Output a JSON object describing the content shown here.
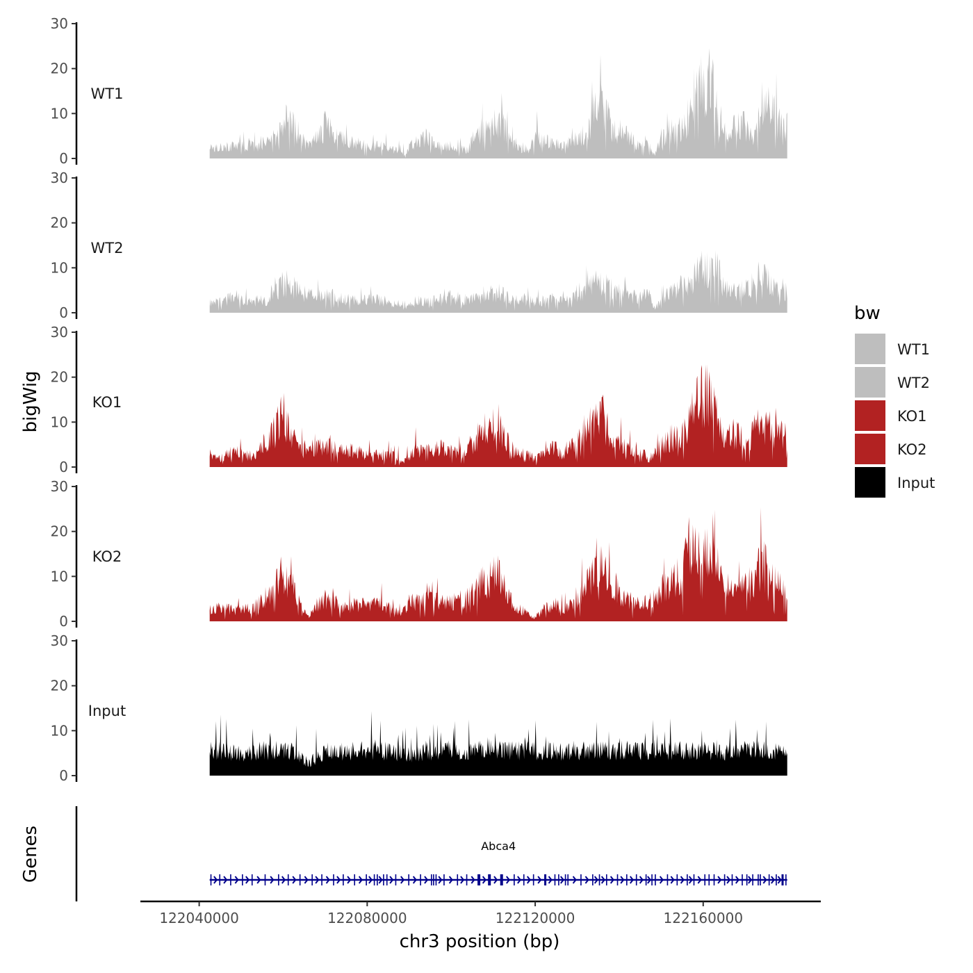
{
  "chart_data": {
    "type": "area",
    "title": "",
    "xlabel": "chr3 position (bp)",
    "ylabel": "bigWig",
    "genes_label": "Genes",
    "xlim": [
      122026000,
      122188000
    ],
    "data_range": [
      122042500,
      122180000
    ],
    "x_ticks": [
      122040000,
      122080000,
      122120000,
      122160000
    ],
    "x_tick_labels": [
      "122040000",
      "122080000",
      "122120000",
      "122160000"
    ],
    "ylim": [
      0,
      30
    ],
    "y_ticks": [
      0,
      10,
      20,
      30
    ],
    "y_tick_labels": [
      "0",
      "10",
      "20",
      "30"
    ],
    "legend": {
      "title": "bw",
      "position": "right",
      "entries": [
        {
          "label": "WT1",
          "color": "#bebebe"
        },
        {
          "label": "WT2",
          "color": "#bebebe"
        },
        {
          "label": "KO1",
          "color": "#b22222"
        },
        {
          "label": "KO2",
          "color": "#b22222"
        },
        {
          "label": "Input",
          "color": "#000000"
        }
      ]
    },
    "series": [
      {
        "name": "WT1",
        "color": "#bebebe",
        "profile": [
          [
            122042500,
            3
          ],
          [
            122046000,
            3
          ],
          [
            122050000,
            3
          ],
          [
            122054000,
            3
          ],
          [
            122057000,
            4
          ],
          [
            122059000,
            7
          ],
          [
            122061000,
            10
          ],
          [
            122063000,
            7
          ],
          [
            122066000,
            3
          ],
          [
            122068000,
            5
          ],
          [
            122070000,
            8
          ],
          [
            122073000,
            5
          ],
          [
            122076000,
            4
          ],
          [
            122080000,
            3
          ],
          [
            122084000,
            3
          ],
          [
            122087000,
            2
          ],
          [
            122089000,
            1
          ],
          [
            122091000,
            4
          ],
          [
            122094000,
            5
          ],
          [
            122097000,
            3
          ],
          [
            122101000,
            3
          ],
          [
            122104000,
            2
          ],
          [
            122106000,
            6
          ],
          [
            122109000,
            8
          ],
          [
            122112000,
            9
          ],
          [
            122114000,
            5
          ],
          [
            122116000,
            3
          ],
          [
            122118000,
            1
          ],
          [
            122120000,
            5
          ],
          [
            122123000,
            4
          ],
          [
            122126000,
            3
          ],
          [
            122129000,
            4
          ],
          [
            122132000,
            6
          ],
          [
            122134000,
            11
          ],
          [
            122136000,
            13
          ],
          [
            122138000,
            8
          ],
          [
            122141000,
            6
          ],
          [
            122144000,
            4
          ],
          [
            122147000,
            3
          ],
          [
            122148500,
            1
          ],
          [
            122150000,
            5
          ],
          [
            122153000,
            6
          ],
          [
            122156000,
            8
          ],
          [
            122158000,
            14
          ],
          [
            122160000,
            18
          ],
          [
            122162000,
            19
          ],
          [
            122164000,
            8
          ],
          [
            122166000,
            6
          ],
          [
            122169000,
            9
          ],
          [
            122172000,
            6
          ],
          [
            122174000,
            13
          ],
          [
            122176000,
            12
          ],
          [
            122178000,
            9
          ],
          [
            122180000,
            8
          ]
        ]
      },
      {
        "name": "WT2",
        "color": "#bebebe",
        "profile": [
          [
            122042500,
            2
          ],
          [
            122046000,
            3
          ],
          [
            122049000,
            4
          ],
          [
            122052000,
            3
          ],
          [
            122056000,
            3
          ],
          [
            122058000,
            6
          ],
          [
            122060000,
            7
          ],
          [
            122063000,
            6
          ],
          [
            122066000,
            4
          ],
          [
            122069000,
            5
          ],
          [
            122072000,
            4
          ],
          [
            122076000,
            3
          ],
          [
            122080000,
            3
          ],
          [
            122084000,
            3
          ],
          [
            122087000,
            2
          ],
          [
            122089000,
            1
          ],
          [
            122092000,
            3
          ],
          [
            122096000,
            3
          ],
          [
            122100000,
            4
          ],
          [
            122104000,
            3
          ],
          [
            122107000,
            4
          ],
          [
            122111000,
            5
          ],
          [
            122115000,
            3
          ],
          [
            122118000,
            3
          ],
          [
            122122000,
            3
          ],
          [
            122126000,
            3
          ],
          [
            122129000,
            4
          ],
          [
            122132000,
            6
          ],
          [
            122135000,
            8
          ],
          [
            122138000,
            6
          ],
          [
            122141000,
            5
          ],
          [
            122144000,
            4
          ],
          [
            122147000,
            4
          ],
          [
            122148500,
            1
          ],
          [
            122151000,
            4
          ],
          [
            122154000,
            6
          ],
          [
            122157000,
            7
          ],
          [
            122159000,
            10
          ],
          [
            122161000,
            11
          ],
          [
            122163000,
            12
          ],
          [
            122165000,
            6
          ],
          [
            122168000,
            5
          ],
          [
            122171000,
            6
          ],
          [
            122174000,
            9
          ],
          [
            122176000,
            8
          ],
          [
            122178000,
            5
          ],
          [
            122180000,
            5
          ]
        ]
      },
      {
        "name": "KO1",
        "color": "#b22222",
        "profile": [
          [
            122042500,
            3
          ],
          [
            122045000,
            2
          ],
          [
            122048000,
            4
          ],
          [
            122051000,
            3
          ],
          [
            122054000,
            3
          ],
          [
            122056000,
            7
          ],
          [
            122058000,
            9
          ],
          [
            122060000,
            13
          ],
          [
            122062000,
            7
          ],
          [
            122065000,
            4
          ],
          [
            122068000,
            5
          ],
          [
            122071000,
            5
          ],
          [
            122074000,
            4
          ],
          [
            122077000,
            4
          ],
          [
            122080000,
            3
          ],
          [
            122083000,
            3
          ],
          [
            122086000,
            3
          ],
          [
            122088500,
            1
          ],
          [
            122091000,
            4
          ],
          [
            122094000,
            4
          ],
          [
            122097000,
            5
          ],
          [
            122100000,
            4
          ],
          [
            122103000,
            3
          ],
          [
            122105000,
            6
          ],
          [
            122107000,
            8
          ],
          [
            122109000,
            10
          ],
          [
            122111000,
            12
          ],
          [
            122113000,
            7
          ],
          [
            122115000,
            4
          ],
          [
            122118000,
            3
          ],
          [
            122120000,
            2
          ],
          [
            122122000,
            3
          ],
          [
            122125000,
            5
          ],
          [
            122127000,
            2
          ],
          [
            122129000,
            6
          ],
          [
            122131000,
            8
          ],
          [
            122133000,
            10
          ],
          [
            122135000,
            14
          ],
          [
            122137000,
            10
          ],
          [
            122139000,
            6
          ],
          [
            122142000,
            5
          ],
          [
            122145000,
            4
          ],
          [
            122147000,
            2
          ],
          [
            122149000,
            4
          ],
          [
            122152000,
            7
          ],
          [
            122155000,
            8
          ],
          [
            122157000,
            12
          ],
          [
            122159000,
            16
          ],
          [
            122161000,
            20
          ],
          [
            122163000,
            15
          ],
          [
            122165000,
            7
          ],
          [
            122168000,
            8
          ],
          [
            122171000,
            6
          ],
          [
            122173000,
            11
          ],
          [
            122175000,
            10
          ],
          [
            122177000,
            9
          ],
          [
            122180000,
            7
          ]
        ]
      },
      {
        "name": "KO2",
        "color": "#b22222",
        "profile": [
          [
            122042500,
            3
          ],
          [
            122045000,
            3
          ],
          [
            122048000,
            3
          ],
          [
            122051000,
            3
          ],
          [
            122054000,
            4
          ],
          [
            122056000,
            6
          ],
          [
            122058000,
            8
          ],
          [
            122060000,
            12
          ],
          [
            122062000,
            9
          ],
          [
            122064000,
            4
          ],
          [
            122066000,
            1
          ],
          [
            122068000,
            4
          ],
          [
            122071000,
            5
          ],
          [
            122074000,
            4
          ],
          [
            122077000,
            4
          ],
          [
            122080000,
            4
          ],
          [
            122083000,
            4
          ],
          [
            122086000,
            3
          ],
          [
            122088000,
            2
          ],
          [
            122090000,
            5
          ],
          [
            122093000,
            5
          ],
          [
            122096000,
            5
          ],
          [
            122099000,
            5
          ],
          [
            122102000,
            5
          ],
          [
            122105000,
            7
          ],
          [
            122107000,
            9
          ],
          [
            122109000,
            10
          ],
          [
            122111000,
            12
          ],
          [
            122113000,
            7
          ],
          [
            122115000,
            4
          ],
          [
            122118000,
            2
          ],
          [
            122120000,
            1
          ],
          [
            122122000,
            3
          ],
          [
            122125000,
            4
          ],
          [
            122127000,
            3
          ],
          [
            122129000,
            5
          ],
          [
            122131000,
            7
          ],
          [
            122133000,
            10
          ],
          [
            122135000,
            17
          ],
          [
            122137000,
            11
          ],
          [
            122140000,
            7
          ],
          [
            122142000,
            6
          ],
          [
            122145000,
            4
          ],
          [
            122147000,
            5
          ],
          [
            122149000,
            7
          ],
          [
            122152000,
            9
          ],
          [
            122155000,
            11
          ],
          [
            122157000,
            18
          ],
          [
            122159000,
            17
          ],
          [
            122161000,
            18
          ],
          [
            122163000,
            19
          ],
          [
            122165000,
            7
          ],
          [
            122168000,
            7
          ],
          [
            122171000,
            9
          ],
          [
            122173000,
            13
          ],
          [
            122175000,
            14
          ],
          [
            122177000,
            10
          ],
          [
            122180000,
            6
          ]
        ]
      },
      {
        "name": "Input",
        "color": "#000000",
        "profile": [
          [
            122042500,
            6
          ],
          [
            122046000,
            6
          ],
          [
            122050000,
            5
          ],
          [
            122054000,
            6
          ],
          [
            122058000,
            6
          ],
          [
            122062000,
            6
          ],
          [
            122066000,
            3
          ],
          [
            122070000,
            6
          ],
          [
            122074000,
            6
          ],
          [
            122078000,
            6
          ],
          [
            122082000,
            6
          ],
          [
            122086000,
            6
          ],
          [
            122090000,
            5
          ],
          [
            122094000,
            6
          ],
          [
            122098000,
            6
          ],
          [
            122102000,
            6
          ],
          [
            122106000,
            6
          ],
          [
            122110000,
            7
          ],
          [
            122114000,
            6
          ],
          [
            122118000,
            6
          ],
          [
            122122000,
            6
          ],
          [
            122126000,
            6
          ],
          [
            122130000,
            6
          ],
          [
            122134000,
            6
          ],
          [
            122138000,
            6
          ],
          [
            122142000,
            6
          ],
          [
            122146000,
            6
          ],
          [
            122150000,
            6
          ],
          [
            122154000,
            6
          ],
          [
            122158000,
            6
          ],
          [
            122162000,
            6
          ],
          [
            122166000,
            6
          ],
          [
            122170000,
            6
          ],
          [
            122174000,
            6
          ],
          [
            122178000,
            6
          ],
          [
            122180000,
            5
          ]
        ]
      }
    ],
    "gene": {
      "name": "Abca4",
      "strand": "+",
      "color": "#00008b",
      "start": 122042500,
      "end": 122180000,
      "exons": [
        122042800,
        122044900,
        122047500,
        122050300,
        122052600,
        122055700,
        122058900,
        122061200,
        122064000,
        122066900,
        122069200,
        122072000,
        122074300,
        122077000,
        122079800,
        122081700,
        122082400,
        122083900,
        122084700,
        122086800,
        122089900,
        122092700,
        122095300,
        122095800,
        122096400,
        122098300,
        122101500,
        122103700,
        122106600,
        122109100,
        122112000,
        122115000,
        122117300,
        122119600,
        122122400,
        122124700,
        122125600,
        122127200,
        122127800,
        122130900,
        122133700,
        122135300,
        122137000,
        122139600,
        122141800,
        122144100,
        122146400,
        122147800,
        122148600,
        122151500,
        122153800,
        122156200,
        122157800,
        122160400,
        122161400,
        122162600,
        122165100,
        122166900,
        122169300,
        122170400,
        122171800,
        122173100,
        122173600,
        122175700,
        122177400,
        122178900,
        122179700
      ]
    }
  }
}
